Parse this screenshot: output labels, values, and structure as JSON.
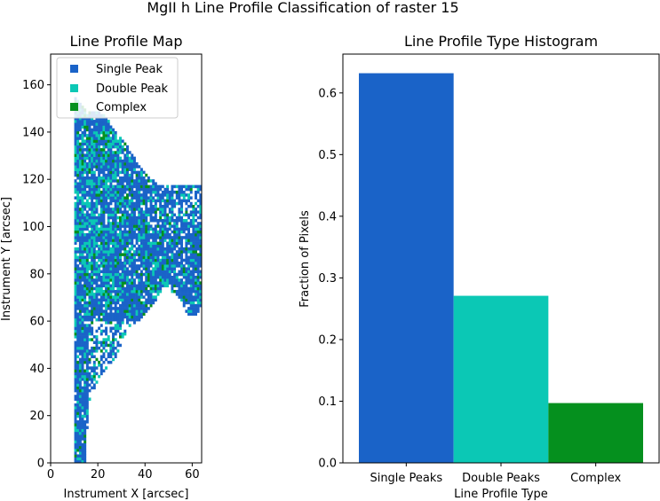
{
  "figure_title": "MgII h Line Profile Classification of raster 15",
  "colors": {
    "single": "#1a63c8",
    "double": "#0bc8b5",
    "complex": "#05901e"
  },
  "chart_data": [
    {
      "type": "heatmap",
      "title": "Line Profile Map",
      "xlabel": "Instrument X [arcsec]",
      "ylabel": "Instrument Y [arcsec]",
      "xlim": [
        0,
        64
      ],
      "ylim": [
        0,
        173
      ],
      "xticks": [
        0,
        20,
        40,
        60
      ],
      "yticks": [
        0,
        20,
        40,
        60,
        80,
        100,
        120,
        140,
        160
      ],
      "legend": {
        "placement": "top-left",
        "entries": [
          "Single Peak",
          "Double Peak",
          "Complex"
        ]
      },
      "categories": [
        "Single Peak",
        "Double Peak",
        "Complex"
      ],
      "region_outline": [
        [
          10,
          0
        ],
        [
          15,
          0
        ],
        [
          15,
          10
        ],
        [
          16,
          18
        ],
        [
          16,
          25
        ],
        [
          20,
          35
        ],
        [
          28,
          45
        ],
        [
          32,
          55
        ],
        [
          38,
          60
        ],
        [
          44,
          68
        ],
        [
          48,
          75
        ],
        [
          52,
          72
        ],
        [
          56,
          68
        ],
        [
          58,
          62
        ],
        [
          62,
          62
        ],
        [
          64,
          68
        ],
        [
          64,
          118
        ],
        [
          55,
          118
        ],
        [
          45,
          118
        ],
        [
          38,
          125
        ],
        [
          32,
          135
        ],
        [
          28,
          140
        ],
        [
          22,
          148
        ],
        [
          14,
          150
        ],
        [
          10,
          155
        ]
      ]
    },
    {
      "type": "bar",
      "title": "Line Profile Type Histogram",
      "xlabel": "Line Profile Type",
      "ylabel": "Fraction of Pixels",
      "categories": [
        "Single Peaks",
        "Double Peaks",
        "Complex"
      ],
      "values": [
        0.632,
        0.271,
        0.097
      ],
      "ylim": [
        0,
        0.663
      ],
      "yticks": [
        0.0,
        0.1,
        0.2,
        0.3,
        0.4,
        0.5,
        0.6
      ],
      "ytick_labels": [
        "0.0",
        "0.1",
        "0.2",
        "0.3",
        "0.4",
        "0.5",
        "0.6"
      ]
    }
  ]
}
